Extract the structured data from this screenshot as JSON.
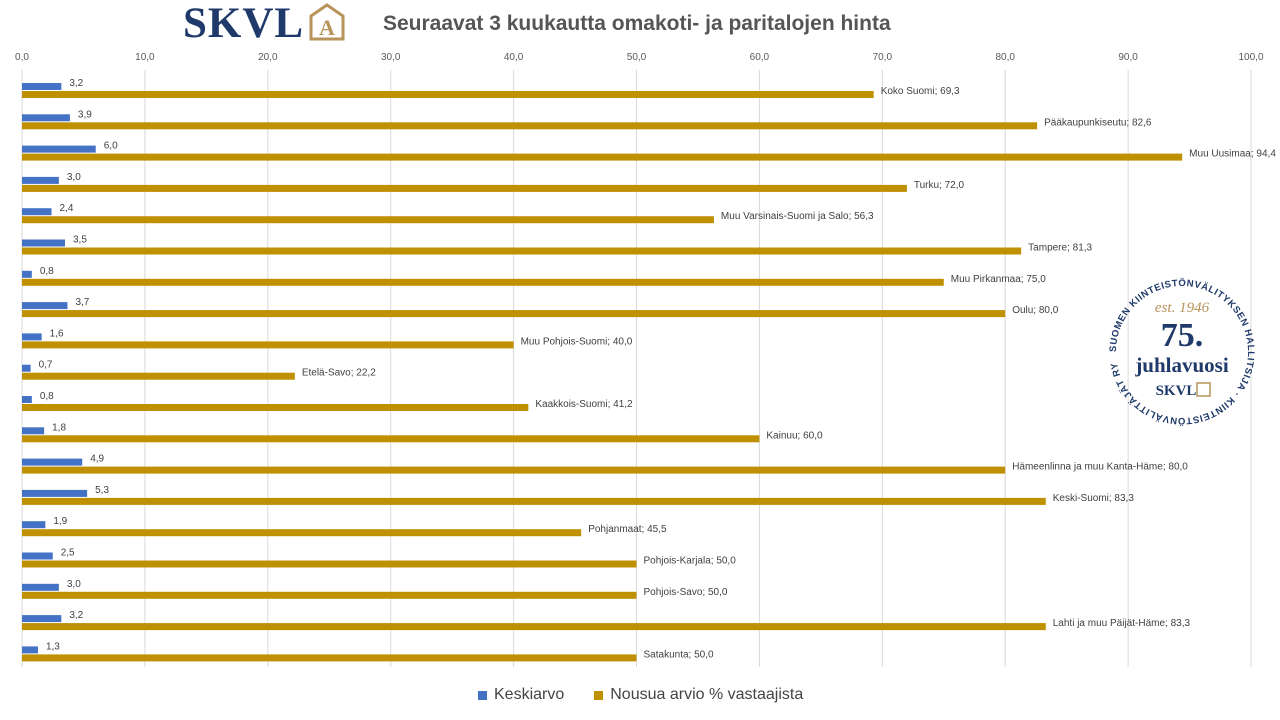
{
  "logo": {
    "text": "SKVL",
    "mark": "A"
  },
  "chart_data": {
    "type": "bar",
    "orientation": "horizontal",
    "title": "Seuraavat 3 kuukautta omakoti- ja paritalojen hinta",
    "xlim": [
      0,
      100
    ],
    "xticks": [
      "0,0",
      "10,0",
      "20,0",
      "30,0",
      "40,0",
      "50,0",
      "60,0",
      "70,0",
      "80,0",
      "90,0",
      "100,0"
    ],
    "grid": true,
    "legend_position": "bottom",
    "categories": [
      "Koko Suomi",
      "Pääkaupunkiseutu",
      "Muu Uusimaa",
      "Turku",
      "Muu Varsinais-Suomi ja Salo",
      "Tampere",
      "Muu Pirkanmaa",
      "Oulu",
      "Muu Pohjois-Suomi",
      "Etelä-Savo",
      "Kaakkois-Suomi",
      "Kainuu",
      "Hämeenlinna ja muu Kanta-Häme",
      "Keski-Suomi",
      "Pohjanmaat",
      "Pohjois-Karjala",
      "Pohjois-Savo",
      "Lahti ja muu Päijät-Häme",
      "Satakunta"
    ],
    "series": [
      {
        "name": "Keskiarvo",
        "color": "#4472c4",
        "values": [
          3.2,
          3.9,
          6.0,
          3.0,
          2.4,
          3.5,
          0.8,
          3.7,
          1.6,
          0.7,
          0.8,
          1.8,
          4.9,
          5.3,
          1.9,
          2.5,
          3.0,
          3.2,
          1.3
        ],
        "labels": [
          "3,2",
          "3,9",
          "6,0",
          "3,0",
          "2,4",
          "3,5",
          "0,8",
          "3,7",
          "1,6",
          "0,7",
          "0,8",
          "1,8",
          "4,9",
          "5,3",
          "1,9",
          "2,5",
          "3,0",
          "3,2",
          "1,3"
        ]
      },
      {
        "name": "Nousua arvio % vastaajista",
        "color": "#bf9000",
        "values": [
          69.3,
          82.6,
          94.4,
          72.0,
          56.3,
          81.3,
          75.0,
          80.0,
          40.0,
          22.2,
          41.2,
          60.0,
          80.0,
          83.3,
          45.5,
          50.0,
          50.0,
          83.3,
          50.0
        ],
        "labels": [
          "Koko Suomi; 69,3",
          "Pääkaupunkiseutu; 82,6",
          "Muu Uusimaa; 94,4",
          "Turku; 72,0",
          "Muu Varsinais-Suomi ja Salo; 56,3",
          "Tampere; 81,3",
          "Muu Pirkanmaa; 75,0",
          "Oulu; 80,0",
          "Muu Pohjois-Suomi; 40,0",
          "Etelä-Savo; 22,2",
          "Kaakkois-Suomi; 41,2",
          "Kainuu; 60,0",
          "Hämeenlinna ja muu Kanta-Häme; 80,0",
          "Keski-Suomi; 83,3",
          "Pohjanmaat; 45,5",
          "Pohjois-Karjala; 50,0",
          "Pohjois-Savo; 50,0",
          "Lahti ja muu Päijät-Häme; 83,3",
          "Satakunta; 50,0"
        ]
      }
    ]
  },
  "badge": {
    "arc_text": "SUOMEN KIINTEISTÖNVÄLITYKSEN HALLITSIJA · KIINTEISTÖNVÄLITTÄJÄT RY",
    "est": "est. 1946",
    "number": "75.",
    "word": "juhlavuosi",
    "logo": "SKVL",
    "colors": {
      "navy": "#1f3a6a",
      "gold": "#b8935a"
    }
  }
}
